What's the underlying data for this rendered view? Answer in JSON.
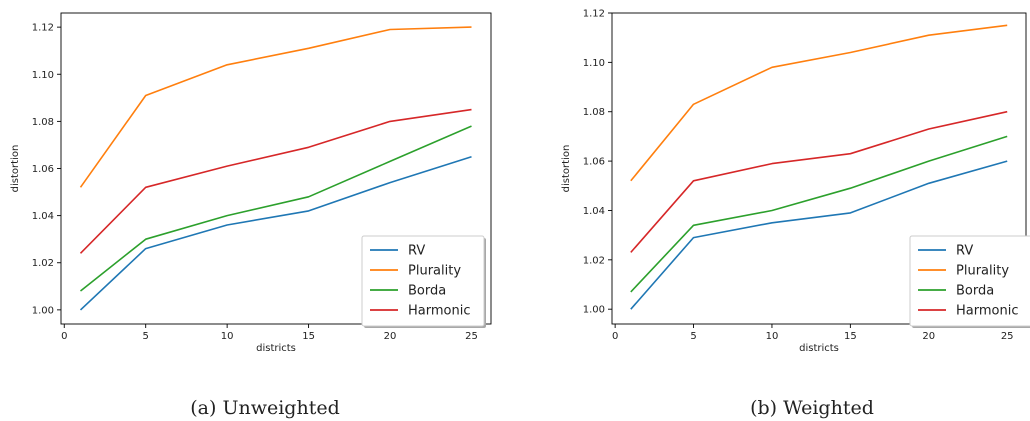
{
  "chart_data": [
    {
      "type": "line",
      "caption": "(a) Unweighted",
      "xlabel": "districts",
      "ylabel": "distortion",
      "xlim": [
        -0.2,
        26.2
      ],
      "ylim": [
        0.994,
        1.126
      ],
      "xticks": [
        0,
        5,
        10,
        15,
        20,
        25
      ],
      "yticks": [
        1.0,
        1.02,
        1.04,
        1.06,
        1.08,
        1.1,
        1.12
      ],
      "ytick_labels": [
        "1.00",
        "1.02",
        "1.04",
        "1.06",
        "1.08",
        "1.10",
        "1.12"
      ],
      "legend_position": "lower-right",
      "x": [
        1,
        5,
        10,
        15,
        20,
        25
      ],
      "series": [
        {
          "name": "RV",
          "color": "#1f77b4",
          "values": [
            1.0,
            1.026,
            1.036,
            1.042,
            1.054,
            1.065
          ]
        },
        {
          "name": "Plurality",
          "color": "#ff7f0e",
          "values": [
            1.052,
            1.091,
            1.104,
            1.111,
            1.119,
            1.12
          ]
        },
        {
          "name": "Borda",
          "color": "#2ca02c",
          "values": [
            1.008,
            1.03,
            1.04,
            1.048,
            1.063,
            1.078
          ]
        },
        {
          "name": "Harmonic",
          "color": "#d62728",
          "values": [
            1.024,
            1.052,
            1.061,
            1.069,
            1.08,
            1.085
          ]
        }
      ]
    },
    {
      "type": "line",
      "caption": "(b) Weighted",
      "xlabel": "districts",
      "ylabel": "distortion",
      "xlim": [
        -0.2,
        26.2
      ],
      "ylim": [
        0.994,
        1.12
      ],
      "xticks": [
        0,
        5,
        10,
        15,
        20,
        25
      ],
      "yticks": [
        1.0,
        1.02,
        1.04,
        1.06,
        1.08,
        1.1,
        1.12
      ],
      "ytick_labels": [
        "1.00",
        "1.02",
        "1.04",
        "1.06",
        "1.08",
        "1.10",
        "1.12"
      ],
      "legend_position": "lower-right",
      "x": [
        1,
        5,
        10,
        15,
        20,
        25
      ],
      "series": [
        {
          "name": "RV",
          "color": "#1f77b4",
          "values": [
            1.0,
            1.029,
            1.035,
            1.039,
            1.051,
            1.06
          ]
        },
        {
          "name": "Plurality",
          "color": "#ff7f0e",
          "values": [
            1.052,
            1.083,
            1.098,
            1.104,
            1.111,
            1.115
          ]
        },
        {
          "name": "Borda",
          "color": "#2ca02c",
          "values": [
            1.007,
            1.034,
            1.04,
            1.049,
            1.06,
            1.07
          ]
        },
        {
          "name": "Harmonic",
          "color": "#d62728",
          "values": [
            1.023,
            1.052,
            1.059,
            1.063,
            1.073,
            1.08
          ]
        }
      ]
    }
  ]
}
